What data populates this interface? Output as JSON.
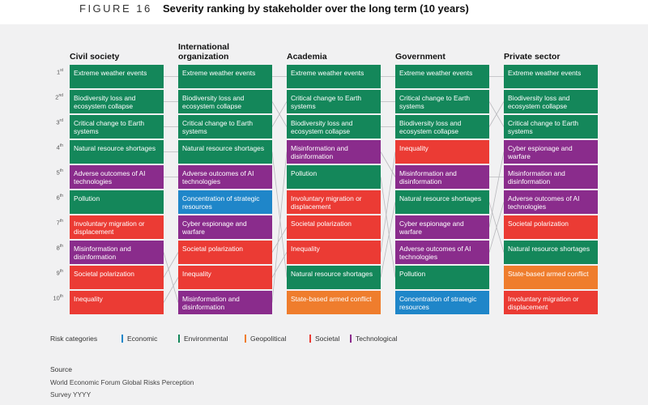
{
  "figure": {
    "label": "FIGURE 16",
    "title": "Severity ranking by stakeholder over the long term (10 years)"
  },
  "colors": {
    "Economic": "#1f86c9",
    "Environmental": "#14875a",
    "Geopolitical": "#ef7d2d",
    "Societal": "#eb3b34",
    "Technological": "#8a2c8c"
  },
  "chart_data": {
    "type": "table",
    "title": "Severity ranking by stakeholder over the long term (10 years)",
    "ranks": [
      {
        "n": "1",
        "suffix": "st"
      },
      {
        "n": "2",
        "suffix": "nd"
      },
      {
        "n": "3",
        "suffix": "rd"
      },
      {
        "n": "4",
        "suffix": "th"
      },
      {
        "n": "5",
        "suffix": "th"
      },
      {
        "n": "6",
        "suffix": "th"
      },
      {
        "n": "7",
        "suffix": "th"
      },
      {
        "n": "8",
        "suffix": "th"
      },
      {
        "n": "9",
        "suffix": "th"
      },
      {
        "n": "10",
        "suffix": "th"
      }
    ],
    "columns": [
      {
        "name": "Civil society",
        "risks": [
          {
            "label": "Extreme weather events",
            "category": "Environmental"
          },
          {
            "label": "Biodiversity loss and ecosystem collapse",
            "category": "Environmental"
          },
          {
            "label": "Critical change to Earth systems",
            "category": "Environmental"
          },
          {
            "label": "Natural resource shortages",
            "category": "Environmental"
          },
          {
            "label": "Adverse outcomes of AI technologies",
            "category": "Technological"
          },
          {
            "label": "Pollution",
            "category": "Environmental"
          },
          {
            "label": "Involuntary migration or displacement",
            "category": "Societal"
          },
          {
            "label": "Misinformation and disinformation",
            "category": "Technological"
          },
          {
            "label": "Societal polarization",
            "category": "Societal"
          },
          {
            "label": "Inequality",
            "category": "Societal"
          }
        ]
      },
      {
        "name": "International organization",
        "risks": [
          {
            "label": "Extreme weather events",
            "category": "Environmental"
          },
          {
            "label": "Biodiversity loss and ecosystem collapse",
            "category": "Environmental"
          },
          {
            "label": "Critical change to Earth systems",
            "category": "Environmental"
          },
          {
            "label": "Natural resource shortages",
            "category": "Environmental"
          },
          {
            "label": "Adverse outcomes of AI technologies",
            "category": "Technological"
          },
          {
            "label": "Concentration of strategic resources",
            "category": "Economic"
          },
          {
            "label": "Cyber espionage and warfare",
            "category": "Technological"
          },
          {
            "label": "Societal polarization",
            "category": "Societal"
          },
          {
            "label": "Inequality",
            "category": "Societal"
          },
          {
            "label": "Misinformation and disinformation",
            "category": "Technological"
          }
        ]
      },
      {
        "name": "Academia",
        "risks": [
          {
            "label": "Extreme weather events",
            "category": "Environmental"
          },
          {
            "label": "Critical change to Earth systems",
            "category": "Environmental"
          },
          {
            "label": "Biodiversity loss and ecosystem collapse",
            "category": "Environmental"
          },
          {
            "label": "Misinformation and disinformation",
            "category": "Technological"
          },
          {
            "label": "Pollution",
            "category": "Environmental"
          },
          {
            "label": "Involuntary migration or displacement",
            "category": "Societal"
          },
          {
            "label": "Societal polarization",
            "category": "Societal"
          },
          {
            "label": "Inequality",
            "category": "Societal"
          },
          {
            "label": "Natural resource shortages",
            "category": "Environmental"
          },
          {
            "label": "State-based armed conflict",
            "category": "Geopolitical"
          }
        ]
      },
      {
        "name": "Government",
        "risks": [
          {
            "label": "Extreme weather events",
            "category": "Environmental"
          },
          {
            "label": "Critical change to Earth systems",
            "category": "Environmental"
          },
          {
            "label": "Biodiversity loss and ecosystem collapse",
            "category": "Environmental"
          },
          {
            "label": "Inequality",
            "category": "Societal"
          },
          {
            "label": "Misinformation and disinformation",
            "category": "Technological"
          },
          {
            "label": "Natural resource shortages",
            "category": "Environmental"
          },
          {
            "label": "Cyber espionage and warfare",
            "category": "Technological"
          },
          {
            "label": "Adverse outcomes of AI technologies",
            "category": "Technological"
          },
          {
            "label": "Pollution",
            "category": "Environmental"
          },
          {
            "label": "Concentration of strategic resources",
            "category": "Economic"
          }
        ]
      },
      {
        "name": "Private sector",
        "risks": [
          {
            "label": "Extreme weather events",
            "category": "Environmental"
          },
          {
            "label": "Biodiversity loss and ecosystem collapse",
            "category": "Environmental"
          },
          {
            "label": "Critical change to Earth systems",
            "category": "Environmental"
          },
          {
            "label": "Cyber espionage and warfare",
            "category": "Technological"
          },
          {
            "label": "Misinformation and disinformation",
            "category": "Technological"
          },
          {
            "label": "Adverse outcomes of AI technologies",
            "category": "Technological"
          },
          {
            "label": "Societal polarization",
            "category": "Societal"
          },
          {
            "label": "Natural resource shortages",
            "category": "Environmental"
          },
          {
            "label": "State-based armed conflict",
            "category": "Geopolitical"
          },
          {
            "label": "Involuntary migration or displacement",
            "category": "Societal"
          }
        ]
      }
    ],
    "legend": {
      "title": "Risk categories",
      "items": [
        "Economic",
        "Environmental",
        "Geopolitical",
        "Societal",
        "Technological"
      ]
    }
  },
  "source": {
    "title": "Source",
    "text": "World Economic Forum Global Risks Perception Survey YYYY"
  }
}
